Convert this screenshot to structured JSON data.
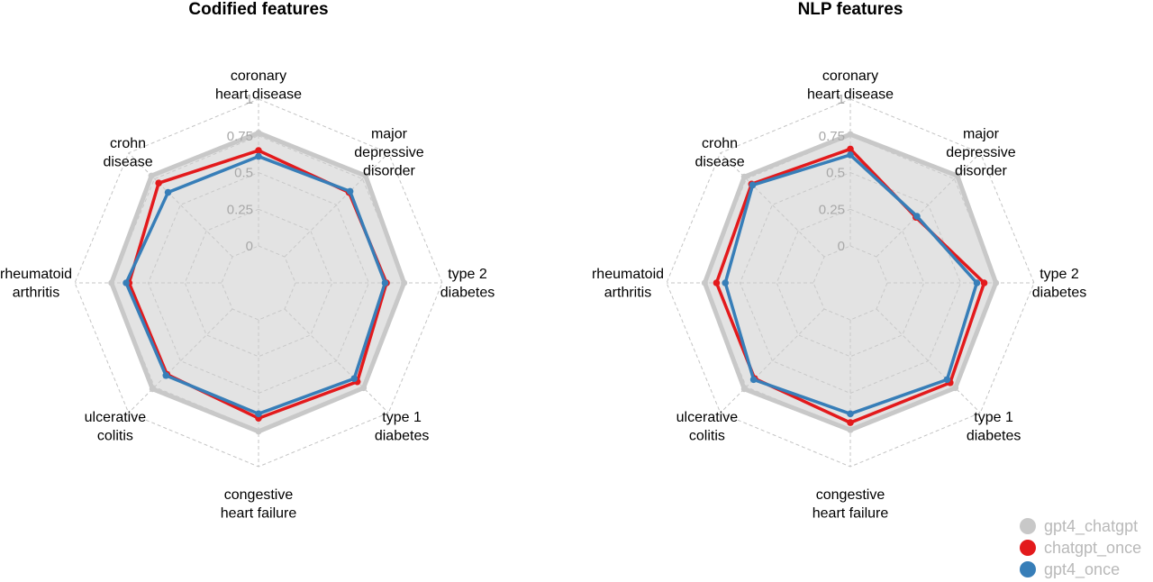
{
  "chart_data": [
    {
      "type": "radar",
      "title": "Codified features",
      "axes": [
        [
          "coronary",
          "heart disease"
        ],
        [
          "major",
          "depressive",
          "disorder"
        ],
        [
          "type 2",
          "diabetes"
        ],
        [
          "type 1",
          "diabetes"
        ],
        [
          "congestive",
          "heart failure"
        ],
        [
          "ulcerative",
          "colitis"
        ],
        [
          "rheumatoid",
          "arthritis"
        ],
        [
          "crohn",
          "disease"
        ]
      ],
      "rlim": [
        0,
        1
      ],
      "ticks": [
        "0",
        "0.25",
        "0.5",
        "0.75",
        "1"
      ],
      "tick_values": [
        0,
        0.25,
        0.5,
        0.75,
        1
      ],
      "series": [
        {
          "name": "gpt4_chatgpt",
          "color": "#c8c8c8",
          "fill": true,
          "values": [
            0.77,
            0.78,
            0.74,
            0.76,
            0.76,
            0.77,
            0.75,
            0.78
          ]
        },
        {
          "name": "chatgpt_once",
          "color": "#e31a1c",
          "fill": false,
          "values": [
            0.65,
            0.62,
            0.62,
            0.7,
            0.67,
            0.63,
            0.63,
            0.71
          ]
        },
        {
          "name": "gpt4_once",
          "color": "#377eb8",
          "fill": false,
          "values": [
            0.61,
            0.63,
            0.61,
            0.67,
            0.64,
            0.64,
            0.65,
            0.62
          ]
        }
      ]
    },
    {
      "type": "radar",
      "title": "NLP features",
      "axes": [
        [
          "coronary",
          "heart disease"
        ],
        [
          "major",
          "depressive",
          "disorder"
        ],
        [
          "type 2",
          "diabetes"
        ],
        [
          "type 1",
          "diabetes"
        ],
        [
          "congestive",
          "heart failure"
        ],
        [
          "ulcerative",
          "colitis"
        ],
        [
          "rheumatoid",
          "arthritis"
        ],
        [
          "crohn",
          "disease"
        ]
      ],
      "rlim": [
        0,
        1
      ],
      "ticks": [
        "0",
        "0.25",
        "0.5",
        "0.75",
        "1"
      ],
      "tick_values": [
        0,
        0.25,
        0.5,
        0.75,
        1
      ],
      "series": [
        {
          "name": "gpt4_chatgpt",
          "color": "#c8c8c8",
          "fill": true,
          "values": [
            0.76,
            0.78,
            0.74,
            0.76,
            0.75,
            0.77,
            0.74,
            0.77
          ]
        },
        {
          "name": "chatgpt_once",
          "color": "#e31a1c",
          "fill": false,
          "values": [
            0.66,
            0.38,
            0.66,
            0.71,
            0.7,
            0.67,
            0.66,
            0.7
          ]
        },
        {
          "name": "gpt4_once",
          "color": "#377eb8",
          "fill": false,
          "values": [
            0.62,
            0.39,
            0.61,
            0.68,
            0.64,
            0.68,
            0.6,
            0.69
          ]
        }
      ]
    }
  ],
  "legend": {
    "position": "bottom-right",
    "items": [
      {
        "name": "gpt4_chatgpt",
        "color": "#c8c8c8"
      },
      {
        "name": "chatgpt_once",
        "color": "#e31a1c"
      },
      {
        "name": "gpt4_once",
        "color": "#377eb8"
      }
    ]
  }
}
